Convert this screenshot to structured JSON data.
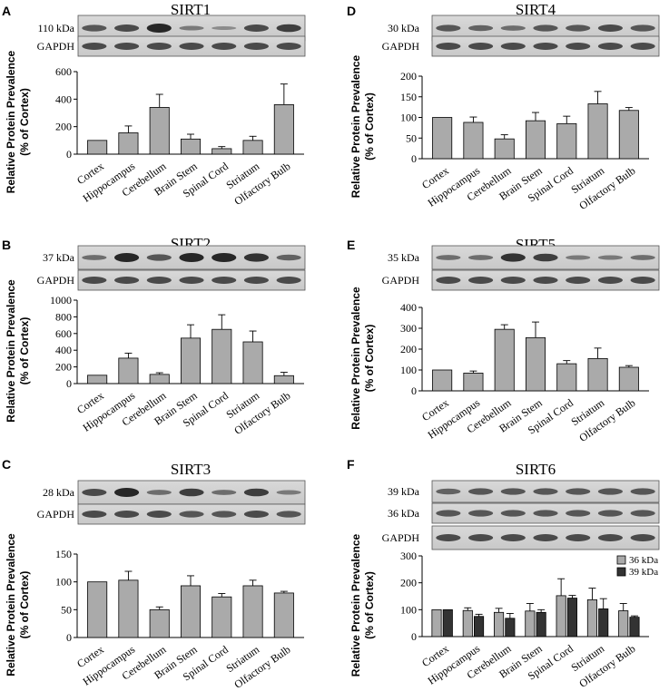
{
  "y_axis_label_line1": "Relative Protein Prevalence",
  "y_axis_label_line2": "(% of Cortex)",
  "categories": [
    "Cortex",
    "Hippocampus",
    "Cerebellum",
    "Brain Stem",
    "Spinal Cord",
    "Striatum",
    "Olfactory Bulb"
  ],
  "bar_color": "#aaaaaa",
  "dark_bar_color": "#333333",
  "chart_data": [
    {
      "panel": "A",
      "title": "SIRT1",
      "type": "bar",
      "blot_labels": [
        "110 kDa",
        "GAPDH"
      ],
      "categories": [
        "Cortex",
        "Hippocampus",
        "Cerebellum",
        "Brain Stem",
        "Spinal Cord",
        "Striatum",
        "Olfactory Bulb"
      ],
      "values": [
        100,
        155,
        340,
        110,
        40,
        100,
        360
      ],
      "errors": [
        0,
        50,
        95,
        35,
        15,
        30,
        150
      ],
      "ylim": [
        0,
        600
      ],
      "yticks": [
        0,
        200,
        400,
        600
      ],
      "ylabel": "Relative Protein Prevalence (% of Cortex)"
    },
    {
      "panel": "B",
      "title": "SIRT2",
      "type": "bar",
      "blot_labels": [
        "37 kDa",
        "GAPDH"
      ],
      "categories": [
        "Cortex",
        "Hippocampus",
        "Cerebellum",
        "Brain Stem",
        "Spinal Cord",
        "Striatum",
        "Olfactory Bulb"
      ],
      "values": [
        100,
        305,
        110,
        545,
        650,
        500,
        95
      ],
      "errors": [
        0,
        60,
        20,
        160,
        175,
        130,
        40
      ],
      "ylim": [
        0,
        1000
      ],
      "yticks": [
        0,
        200,
        400,
        600,
        800,
        1000
      ],
      "ylabel": "Relative Protein Prevalence (% of Cortex)"
    },
    {
      "panel": "C",
      "title": "SIRT3",
      "type": "bar",
      "blot_labels": [
        "28 kDa",
        "GAPDH"
      ],
      "categories": [
        "Cortex",
        "Hippocampus",
        "Cerebellum",
        "Brain Stem",
        "Spinal Cord",
        "Striatum",
        "Olfactory Bulb"
      ],
      "values": [
        100,
        103,
        50,
        93,
        73,
        93,
        80
      ],
      "errors": [
        0,
        16,
        5,
        18,
        6,
        10,
        3
      ],
      "ylim": [
        0,
        150
      ],
      "yticks": [
        0,
        50,
        100,
        150
      ],
      "ylabel": "Relative Protein Prevalence (% of Cortex)"
    },
    {
      "panel": "D",
      "title": "SIRT4",
      "type": "bar",
      "blot_labels": [
        "30 kDa",
        "GAPDH"
      ],
      "categories": [
        "Cortex",
        "Hippocampus",
        "Cerebellum",
        "Brain Stem",
        "Spinal Cord",
        "Striatum",
        "Olfactory Bulb"
      ],
      "values": [
        100,
        88,
        48,
        92,
        85,
        133,
        117
      ],
      "errors": [
        0,
        13,
        10,
        20,
        18,
        30,
        7
      ],
      "ylim": [
        0,
        200
      ],
      "yticks": [
        0,
        50,
        100,
        150,
        200
      ],
      "ylabel": "Relative Protein Prevalence (% of Cortex)"
    },
    {
      "panel": "E",
      "title": "SIRT5",
      "type": "bar",
      "blot_labels": [
        "35 kDa",
        "GAPDH"
      ],
      "categories": [
        "Cortex",
        "Hippocampus",
        "Cerebellum",
        "Brain Stem",
        "Spinal Cord",
        "Striatum",
        "Olfactory Bulb"
      ],
      "values": [
        100,
        85,
        295,
        255,
        130,
        155,
        113
      ],
      "errors": [
        0,
        10,
        22,
        75,
        15,
        50,
        8
      ],
      "ylim": [
        0,
        400
      ],
      "yticks": [
        0,
        100,
        200,
        300,
        400
      ],
      "ylabel": "Relative Protein Prevalence (% of Cortex)"
    },
    {
      "panel": "F",
      "title": "SIRT6",
      "type": "bar",
      "blot_labels": [
        "39 kDa",
        "36 kDa",
        "GAPDH"
      ],
      "categories": [
        "Cortex",
        "Hippocampus",
        "Cerebellum",
        "Brain Stem",
        "Spinal Cord",
        "Striatum",
        "Olfactory Bulb"
      ],
      "series": [
        {
          "name": "36 kDa",
          "values": [
            100,
            97,
            90,
            95,
            152,
            137,
            96
          ],
          "errors": [
            0,
            10,
            15,
            28,
            63,
            43,
            27
          ]
        },
        {
          "name": "39 kDa",
          "values": [
            100,
            75,
            68,
            90,
            143,
            103,
            72
          ],
          "errors": [
            0,
            8,
            18,
            10,
            10,
            38,
            5
          ]
        }
      ],
      "ylim": [
        0,
        300
      ],
      "yticks": [
        0,
        100,
        200,
        300
      ],
      "legend_position": "top-right",
      "ylabel": "Relative Protein Prevalence (% of Cortex)"
    }
  ]
}
